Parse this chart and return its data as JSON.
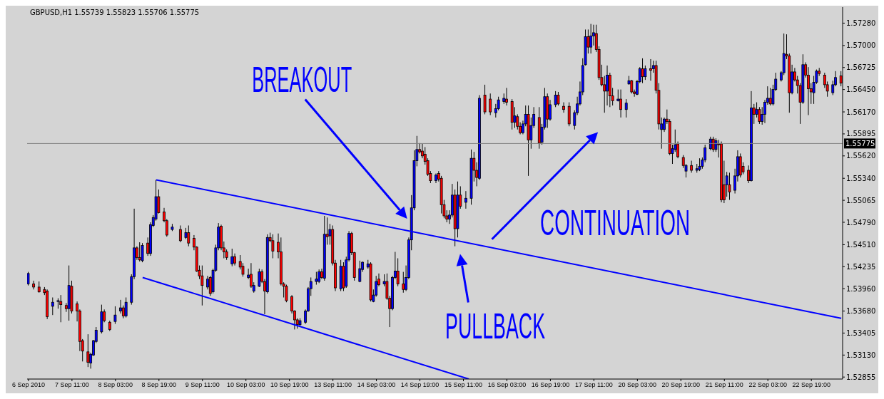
{
  "chart_data": {
    "type": "candlestick",
    "title": "GBPUSD,H1 1.55739 1.55823 1.55706 1.55775",
    "categories": [
      "6 Sep 2010",
      null,
      null,
      null,
      null,
      null,
      null,
      null,
      null,
      null,
      null,
      null,
      null,
      null,
      null,
      null,
      "7 Sep 11:00",
      null,
      null,
      null,
      null,
      null,
      null,
      null,
      null,
      null,
      null,
      null,
      null,
      null,
      null,
      null,
      "8 Sep 03:00",
      null,
      null,
      null,
      null,
      null,
      null,
      null,
      null,
      null,
      null,
      null,
      null,
      null,
      null,
      null,
      "8 Sep 19:00",
      null,
      null,
      null,
      null,
      null,
      null,
      null,
      null,
      null,
      null,
      null,
      null,
      null,
      null,
      null,
      "9 Sep 11:00",
      null,
      null,
      null,
      null,
      null,
      null,
      null,
      null,
      null,
      null,
      null,
      null,
      null,
      null,
      null,
      "10 Sep 03:00",
      null,
      null,
      null,
      null,
      null,
      null,
      null,
      null,
      null,
      null,
      null,
      null,
      null,
      null,
      null,
      "10 Sep 19:00",
      null,
      null,
      null,
      null,
      null,
      null,
      null,
      null,
      null,
      null,
      null,
      null,
      null,
      null,
      null,
      "13 Sep 11:00",
      null,
      null,
      null,
      null,
      null,
      null,
      null,
      null,
      null,
      null,
      null,
      null,
      null,
      null,
      null,
      "14 Sep 03:00",
      null,
      null,
      null,
      null,
      null,
      null,
      null,
      null,
      null,
      null,
      null,
      null,
      null,
      null,
      null,
      "14 Sep 19:00",
      null,
      null,
      null,
      null,
      null,
      null,
      null,
      null,
      null,
      null,
      null,
      null,
      null,
      null,
      null,
      "15 Sep 11:00",
      null,
      null,
      null,
      null,
      null,
      null,
      null,
      null,
      null,
      null,
      null,
      null,
      null,
      null,
      null,
      "16 Sep 03:00",
      null,
      null,
      null,
      null,
      null,
      null,
      null,
      null,
      null,
      null,
      null,
      null,
      null,
      null,
      null,
      "16 Sep 19:00",
      null,
      null,
      null,
      null,
      null,
      null,
      null,
      null,
      null,
      null,
      null,
      null,
      null,
      null,
      null,
      "17 Sep 11:00",
      null,
      null,
      null,
      null,
      null,
      null,
      null,
      null,
      null,
      null,
      null,
      null,
      null,
      null,
      null,
      "20 Sep 03:00",
      null,
      null,
      null,
      null,
      null,
      null,
      null,
      null,
      null,
      null,
      null,
      null,
      null,
      null,
      null,
      "20 Sep 19:00",
      null,
      null,
      null,
      null,
      null,
      null,
      null,
      null,
      null,
      null,
      null,
      null,
      null,
      null,
      null,
      "21 Sep 11:00",
      null,
      null,
      null,
      null,
      null,
      null,
      null,
      null,
      null,
      null,
      null,
      null,
      null,
      null,
      null,
      "22 Sep 03:00",
      null,
      null,
      null,
      null,
      null,
      null,
      null,
      null,
      null,
      null,
      null,
      null,
      null,
      null,
      null,
      "22 Sep 19:00",
      null,
      null,
      null,
      null,
      null,
      null,
      null,
      null,
      null,
      null,
      null
    ],
    "ohlc": [
      [
        1.5402,
        1.5417,
        1.54,
        1.5415
      ],
      null,
      [
        1.5402,
        1.5406,
        1.5395,
        1.5398
      ],
      null,
      [
        1.5398,
        1.5405,
        1.5391,
        1.5392
      ],
      null,
      [
        1.5395,
        1.5398,
        1.5388,
        1.5391
      ],
      [
        1.5393,
        1.5395,
        1.5358,
        1.5361
      ],
      null,
      [
        1.5374,
        1.5385,
        1.5363,
        1.5379
      ],
      null,
      [
        1.538,
        1.5384,
        1.5371,
        1.5381
      ],
      [
        1.538,
        1.5388,
        1.5354,
        1.5376
      ],
      null,
      [
        1.5375,
        1.5378,
        1.5367,
        1.5371
      ],
      [
        1.5371,
        1.5425,
        1.5356,
        1.54
      ],
      [
        1.5399,
        1.5406,
        1.5365,
        1.5368
      ],
      null,
      [
        1.5377,
        1.538,
        1.5355,
        1.5368
      ],
      [
        1.5368,
        1.537,
        1.5318,
        1.533
      ],
      [
        1.5331,
        1.5333,
        1.5305,
        1.5318
      ],
      null,
      [
        1.5317,
        1.5339,
        1.5298,
        1.5304
      ],
      [
        1.5303,
        1.5316,
        1.5296,
        1.5314
      ],
      [
        1.5313,
        1.5332,
        1.5312,
        1.5331
      ],
      [
        1.533,
        1.5348,
        1.5328,
        1.5344
      ],
      null,
      [
        1.5342,
        1.5376,
        1.534,
        1.5367
      ],
      [
        1.5367,
        1.537,
        1.5354,
        1.5356
      ],
      null,
      [
        1.5354,
        1.5356,
        1.5343,
        1.5345
      ],
      null,
      [
        1.5355,
        1.5374,
        1.5352,
        1.5363
      ],
      null,
      [
        1.5368,
        1.5382,
        1.5365,
        1.5372
      ],
      [
        1.5372,
        1.5375,
        1.5359,
        1.5362
      ],
      [
        1.5362,
        1.5385,
        1.536,
        1.5379
      ],
      null,
      [
        1.5379,
        1.5414,
        1.5376,
        1.5411
      ],
      [
        1.5411,
        1.5496,
        1.5408,
        1.5447
      ],
      [
        1.5447,
        1.5449,
        1.5432,
        1.5435
      ],
      [
        1.5435,
        1.5454,
        1.543,
        1.5432
      ],
      [
        1.5431,
        1.5453,
        1.5429,
        1.545
      ],
      null,
      [
        1.5453,
        1.546,
        1.5437,
        1.544
      ],
      [
        1.544,
        1.5479,
        1.5437,
        1.5476
      ],
      [
        1.5475,
        1.5488,
        1.5473,
        1.5485
      ],
      [
        1.5483,
        1.5532,
        1.5481,
        1.5511
      ],
      [
        1.5511,
        1.552,
        1.549,
        1.5491
      ],
      null,
      [
        1.5492,
        1.5497,
        1.5479,
        1.5481
      ],
      [
        1.5481,
        1.5483,
        1.5461,
        1.5463
      ],
      null,
      [
        1.547,
        1.5477,
        1.5468,
        1.5473
      ],
      null,
      null,
      [
        1.547,
        1.5475,
        1.5454,
        1.5456
      ],
      null,
      [
        1.546,
        1.5472,
        1.5458,
        1.5466
      ],
      [
        1.5466,
        1.5475,
        1.5449,
        1.5453
      ],
      null,
      [
        1.5459,
        1.5463,
        1.5444,
        1.5448
      ],
      [
        1.5448,
        1.5449,
        1.5417,
        1.5418
      ],
      [
        1.5419,
        1.5425,
        1.5408,
        1.5412
      ],
      [
        1.5412,
        1.5425,
        1.5375,
        1.54
      ],
      null,
      [
        1.5398,
        1.5412,
        1.5395,
        1.5408
      ],
      [
        1.541,
        1.5412,
        1.5387,
        1.539
      ],
      [
        1.5392,
        1.5421,
        1.539,
        1.5419
      ],
      [
        1.5419,
        1.5451,
        1.5417,
        1.5447
      ],
      [
        1.5447,
        1.5478,
        1.5444,
        1.5473
      ],
      [
        1.5474,
        1.5476,
        1.5444,
        1.5447
      ],
      [
        1.5447,
        1.5455,
        1.5434,
        1.5442
      ],
      [
        1.5442,
        1.5445,
        1.5432,
        1.5435
      ],
      null,
      [
        1.5427,
        1.5446,
        1.5424,
        1.5436
      ],
      [
        1.5436,
        1.544,
        1.5425,
        1.5428
      ],
      null,
      [
        1.543,
        1.5438,
        1.542,
        1.5423
      ],
      [
        1.5424,
        1.5428,
        1.5411,
        1.5414
      ],
      null,
      [
        1.541,
        1.5421,
        1.5408,
        1.5413
      ],
      [
        1.5414,
        1.5428,
        1.5397,
        1.5399
      ],
      [
        1.5393,
        1.5404,
        1.5391,
        1.54
      ],
      null,
      [
        1.5399,
        1.5421,
        1.5398,
        1.5417
      ],
      [
        1.5417,
        1.542,
        1.5403,
        1.5405
      ],
      [
        1.5405,
        1.5408,
        1.5364,
        1.5393
      ],
      [
        1.5392,
        1.5464,
        1.539,
        1.546
      ],
      [
        1.546,
        1.5466,
        1.5454,
        1.5456
      ],
      [
        1.5456,
        1.5464,
        1.5434,
        1.5443
      ],
      null,
      [
        1.5454,
        1.5465,
        1.5434,
        1.5442
      ],
      [
        1.5442,
        1.546,
        1.54,
        1.5402
      ],
      [
        1.5402,
        1.5404,
        1.5385,
        1.5399
      ],
      [
        1.5399,
        1.5401,
        1.5379,
        1.5381
      ],
      null,
      [
        1.5386,
        1.5388,
        1.5365,
        1.5368
      ],
      [
        1.5368,
        1.5369,
        1.5345,
        1.5357
      ],
      [
        1.5357,
        1.5359,
        1.5346,
        1.5351
      ],
      [
        1.5351,
        1.5359,
        1.5349,
        1.5356
      ],
      null,
      [
        1.5354,
        1.537,
        1.5352,
        1.5368
      ],
      [
        1.5368,
        1.5398,
        1.5367,
        1.5396
      ],
      [
        1.5396,
        1.541,
        1.5387,
        1.5405
      ],
      null,
      [
        1.5405,
        1.5417,
        1.5401,
        1.5408
      ],
      [
        1.5405,
        1.542,
        1.5403,
        1.5417
      ],
      [
        1.5417,
        1.5421,
        1.5408,
        1.541
      ],
      [
        1.5409,
        1.5487,
        1.5406,
        1.5464
      ],
      [
        1.5464,
        1.5485,
        1.5451,
        1.5461
      ],
      [
        1.5462,
        1.5477,
        1.5451,
        1.547
      ],
      [
        1.547,
        1.5475,
        1.5425,
        1.5428
      ],
      [
        1.5428,
        1.5432,
        1.5393,
        1.5397
      ],
      null,
      [
        1.5396,
        1.5432,
        1.5393,
        1.5424
      ],
      [
        1.5424,
        1.5429,
        1.5393,
        1.5397
      ],
      [
        1.5399,
        1.5436,
        1.5397,
        1.5432
      ],
      [
        1.5432,
        1.5468,
        1.543,
        1.5465
      ],
      [
        1.5465,
        1.5467,
        1.5438,
        1.5441
      ],
      [
        1.5441,
        1.5442,
        1.5406,
        1.541
      ],
      null,
      [
        1.5405,
        1.5431,
        1.5404,
        1.5421
      ],
      [
        1.542,
        1.543,
        1.5417,
        1.5429
      ],
      null,
      [
        1.5423,
        1.5432,
        1.5421,
        1.5427
      ],
      [
        1.5427,
        1.5429,
        1.538,
        1.5382
      ],
      [
        1.538,
        1.5395,
        1.5379,
        1.5388
      ],
      [
        1.5388,
        1.5412,
        1.5386,
        1.5405
      ],
      [
        1.5408,
        1.5415,
        1.5399,
        1.5401
      ],
      null,
      [
        1.5402,
        1.5414,
        1.5399,
        1.5405
      ],
      [
        1.5405,
        1.5415,
        1.5382,
        1.5384
      ],
      [
        1.5384,
        1.5387,
        1.5348,
        1.5371
      ],
      [
        1.5371,
        1.5412,
        1.5369,
        1.541
      ],
      [
        1.541,
        1.5442,
        1.5408,
        1.5418
      ],
      [
        1.5418,
        1.5434,
        1.5399,
        1.5402
      ],
      null,
      [
        1.5402,
        1.5417,
        1.5391,
        1.5395
      ],
      [
        1.5395,
        1.5425,
        1.5393,
        1.541
      ],
      [
        1.541,
        1.546,
        1.5408,
        1.5457
      ],
      [
        1.5457,
        1.5513,
        1.5444,
        1.5497
      ],
      [
        1.5497,
        1.5569,
        1.5494,
        1.5556
      ],
      [
        1.5556,
        1.5587,
        1.5549,
        1.557
      ],
      [
        1.557,
        1.5578,
        1.5565,
        1.5567
      ],
      [
        1.5568,
        1.5577,
        1.5559,
        1.5562
      ],
      [
        1.5564,
        1.5573,
        1.5551,
        1.5555
      ],
      [
        1.5556,
        1.5559,
        1.5537,
        1.5539
      ],
      [
        1.554,
        1.5543,
        1.5528,
        1.5531
      ],
      null,
      [
        1.5531,
        1.554,
        1.5528,
        1.5538
      ],
      [
        1.554,
        1.5543,
        1.553,
        1.5533
      ],
      [
        1.5534,
        1.5537,
        1.549,
        1.5501
      ],
      [
        1.5501,
        1.5507,
        1.5484,
        1.5487
      ],
      [
        1.5487,
        1.5494,
        1.5479,
        1.5483
      ],
      [
        1.5483,
        1.5494,
        1.5477,
        1.5488
      ],
      [
        1.5488,
        1.5527,
        1.5485,
        1.5513
      ],
      [
        1.5513,
        1.552,
        1.5449,
        1.5471
      ],
      [
        1.5471,
        1.553,
        1.546,
        1.5513
      ],
      [
        1.5513,
        1.5524,
        1.5496,
        1.5499
      ],
      null,
      [
        1.5504,
        1.5518,
        1.5496,
        1.5509
      ],
      null,
      [
        1.5509,
        1.557,
        1.5501,
        1.5559
      ],
      [
        1.5559,
        1.5567,
        1.553,
        1.5544
      ],
      [
        1.5544,
        1.5554,
        1.5524,
        1.5535
      ],
      [
        1.5534,
        1.5638,
        1.5532,
        1.5634
      ],
      null,
      [
        1.5638,
        1.5651,
        1.5614,
        1.5617
      ],
      null,
      [
        1.5633,
        1.564,
        1.5613,
        1.5617
      ],
      null,
      [
        1.5616,
        1.5627,
        1.561,
        1.5621
      ],
      [
        1.5621,
        1.5636,
        1.5619,
        1.5632
      ],
      null,
      [
        1.563,
        1.564,
        1.5627,
        1.5634
      ],
      [
        1.5633,
        1.5647,
        1.5625,
        1.5629
      ],
      null,
      [
        1.563,
        1.5633,
        1.5595,
        1.5604
      ],
      [
        1.5604,
        1.5623,
        1.5597,
        1.5612
      ],
      [
        1.5611,
        1.5614,
        1.5595,
        1.5599
      ],
      [
        1.5599,
        1.5604,
        1.5589,
        1.5591
      ],
      [
        1.5591,
        1.5606,
        1.5589,
        1.5602
      ],
      [
        1.5602,
        1.5625,
        1.5599,
        1.5614
      ],
      [
        1.5614,
        1.5625,
        1.5537,
        1.5582
      ],
      [
        1.5582,
        1.561,
        1.5571,
        1.56
      ],
      [
        1.56,
        1.5623,
        1.5597,
        1.5614
      ],
      null,
      [
        1.561,
        1.5623,
        1.5571,
        1.5578
      ],
      [
        1.5579,
        1.5602,
        1.5576,
        1.5598
      ],
      [
        1.5598,
        1.5647,
        1.5595,
        1.5636
      ],
      [
        1.5636,
        1.564,
        1.5597,
        1.5608
      ],
      [
        1.5608,
        1.5632,
        1.5606,
        1.5626
      ],
      null,
      [
        1.5626,
        1.5643,
        1.5623,
        1.5638
      ],
      [
        1.5638,
        1.5642,
        1.5625,
        1.5627
      ],
      null,
      [
        1.5624,
        1.5629,
        1.5616,
        1.562
      ],
      null,
      [
        1.5624,
        1.5629,
        1.5599,
        1.5602
      ],
      null,
      [
        1.56,
        1.5619,
        1.5595,
        1.5616
      ],
      [
        1.5616,
        1.5636,
        1.5613,
        1.5627
      ],
      [
        1.5627,
        1.5655,
        1.5625,
        1.5642
      ],
      [
        1.5642,
        1.5684,
        1.5638,
        1.5675
      ],
      [
        1.5676,
        1.572,
        1.5675,
        1.5711
      ],
      [
        1.5711,
        1.572,
        1.569,
        1.5698
      ],
      [
        1.5698,
        1.5727,
        1.569,
        1.5712
      ],
      [
        1.5712,
        1.5726,
        1.57,
        1.5716
      ],
      [
        1.5715,
        1.5726,
        1.5692,
        1.5695
      ],
      [
        1.5695,
        1.5699,
        1.5657,
        1.566
      ],
      [
        1.566,
        1.5676,
        1.5649,
        1.5651
      ],
      [
        1.5651,
        1.5662,
        1.5616,
        1.5643
      ],
      [
        1.5643,
        1.5675,
        1.5625,
        1.5663
      ],
      [
        1.5663,
        1.5666,
        1.5623,
        1.5637
      ],
      [
        1.5637,
        1.5647,
        1.5625,
        1.5631
      ],
      null,
      [
        1.5631,
        1.5645,
        1.563,
        1.5633
      ],
      [
        1.5633,
        1.5645,
        1.561,
        1.562
      ],
      null,
      [
        1.562,
        1.5633,
        1.561,
        1.5628
      ],
      [
        1.5652,
        1.5662,
        1.5651,
        1.5656
      ],
      [
        1.5656,
        1.5657,
        1.564,
        1.5642
      ],
      [
        1.5642,
        1.5645,
        1.5636,
        1.564
      ],
      [
        1.5639,
        1.5657,
        1.5638,
        1.5655
      ],
      [
        1.5655,
        1.5673,
        1.5653,
        1.5671
      ],
      [
        1.5671,
        1.5684,
        1.5653,
        1.5661
      ],
      [
        1.5661,
        1.5675,
        1.5657,
        1.5671
      ],
      null,
      [
        1.5671,
        1.5683,
        1.5656,
        1.5669
      ],
      [
        1.5671,
        1.5681,
        1.5666,
        1.5675
      ],
      [
        1.5675,
        1.5681,
        1.564,
        1.5644
      ],
      [
        1.5644,
        1.5653,
        1.5595,
        1.5602
      ],
      [
        1.5595,
        1.561,
        1.5571,
        1.5602
      ],
      [
        1.5595,
        1.561,
        1.5592,
        1.5608
      ],
      [
        1.5608,
        1.562,
        1.5602,
        1.5605
      ],
      [
        1.5605,
        1.5608,
        1.5563,
        1.5565
      ],
      [
        1.5565,
        1.5576,
        1.5552,
        1.5571
      ],
      [
        1.557,
        1.5595,
        1.5567,
        1.5576
      ],
      [
        1.5577,
        1.558,
        1.5559,
        1.5561
      ],
      null,
      [
        1.556,
        1.5563,
        1.5547,
        1.555
      ],
      [
        1.5543,
        1.5552,
        1.5535,
        1.555
      ],
      null,
      [
        1.555,
        1.5556,
        1.5541,
        1.5544
      ],
      null,
      [
        1.5544,
        1.5552,
        1.5541,
        1.5546
      ],
      [
        1.5545,
        1.5559,
        1.5543,
        1.5549
      ],
      [
        1.5549,
        1.556,
        1.5546,
        1.5557
      ],
      [
        1.5557,
        1.5576,
        1.5554,
        1.5572
      ],
      null,
      [
        1.5571,
        1.5586,
        1.5569,
        1.5583
      ],
      [
        1.5583,
        1.5586,
        1.5567,
        1.557
      ],
      [
        1.557,
        1.5584,
        1.5567,
        1.5581
      ],
      [
        1.5577,
        1.5582,
        1.556,
        1.5576
      ],
      [
        1.5577,
        1.558,
        1.5504,
        1.5507
      ],
      [
        1.5526,
        1.5556,
        1.5503,
        1.5507
      ],
      [
        1.5526,
        1.5542,
        1.5511,
        1.5537
      ],
      [
        1.5526,
        1.5541,
        1.5507,
        1.5517
      ],
      null,
      [
        1.5519,
        1.5546,
        1.5515,
        1.5537
      ],
      [
        1.5537,
        1.5569,
        1.553,
        1.5561
      ],
      [
        1.5561,
        1.5565,
        1.5535,
        1.5538
      ],
      [
        1.5549,
        1.5554,
        1.5539,
        1.5542
      ],
      null,
      [
        1.5544,
        1.555,
        1.5528,
        1.5531
      ],
      [
        1.5531,
        1.5643,
        1.553,
        1.5622
      ],
      [
        1.5622,
        1.5627,
        1.5602,
        1.5614
      ],
      [
        1.5614,
        1.5629,
        1.561,
        1.562
      ],
      [
        1.562,
        1.5623,
        1.5602,
        1.5605
      ],
      [
        1.5605,
        1.5623,
        1.5601,
        1.5614
      ],
      [
        1.5614,
        1.5632,
        1.5603,
        1.5629
      ],
      [
        1.5629,
        1.5649,
        1.5626,
        1.5634
      ],
      [
        1.5634,
        1.5647,
        1.5625,
        1.5627
      ],
      [
        1.5627,
        1.5651,
        1.5625,
        1.5645
      ],
      [
        1.5645,
        1.5666,
        1.5643,
        1.5658
      ],
      null,
      [
        1.5657,
        1.5668,
        1.5655,
        1.5666
      ],
      [
        1.5666,
        1.5715,
        1.5663,
        1.569
      ],
      [
        1.5689,
        1.5714,
        1.5683,
        1.5687
      ],
      [
        1.5687,
        1.569,
        1.5616,
        1.5641
      ],
      [
        1.5641,
        1.5676,
        1.5639,
        1.5667
      ],
      [
        1.5667,
        1.5672,
        1.5655,
        1.5657
      ],
      [
        1.5657,
        1.5662,
        1.564,
        1.565
      ],
      [
        1.565,
        1.5653,
        1.5602,
        1.5629
      ],
      [
        1.5629,
        1.5689,
        1.5627,
        1.5676
      ],
      [
        1.5676,
        1.5679,
        1.566,
        1.5663
      ],
      [
        1.5663,
        1.5673,
        1.5613,
        1.5646
      ],
      [
        1.5646,
        1.5653,
        1.5627,
        1.5642
      ],
      [
        1.5641,
        1.5662,
        1.5627,
        1.5654
      ],
      [
        1.5654,
        1.567,
        1.5652,
        1.5668
      ],
      [
        1.5668,
        1.5672,
        1.5662,
        1.5665
      ],
      null,
      [
        1.5663,
        1.5666,
        1.5647,
        1.5651
      ],
      [
        1.5651,
        1.5655,
        1.5636,
        1.5643
      ],
      null,
      [
        1.5641,
        1.5656,
        1.5638,
        1.5651
      ],
      [
        1.5651,
        1.5668,
        1.5649,
        1.566
      ],
      null,
      [
        1.5662,
        1.5668,
        1.5649,
        1.5653
      ]
    ],
    "ylim": [
      1.5283,
      1.5748
    ],
    "yticks": [
      {
        "value": 1.5728,
        "label": "1.57280"
      },
      {
        "value": 1.57,
        "label": "1.57000"
      },
      {
        "value": 1.56725,
        "label": "1.56725"
      },
      {
        "value": 1.5645,
        "label": "1.56450"
      },
      {
        "value": 1.5617,
        "label": "1.56170"
      },
      {
        "value": 1.55895,
        "label": "1.55895"
      },
      {
        "value": 1.5562,
        "label": "1.55620"
      },
      {
        "value": 1.5534,
        "label": "1.55340"
      },
      {
        "value": 1.55065,
        "label": "1.55065"
      },
      {
        "value": 1.5479,
        "label": "1.54790"
      },
      {
        "value": 1.5451,
        "label": "1.54510"
      },
      {
        "value": 1.54235,
        "label": "1.54235"
      },
      {
        "value": 1.5396,
        "label": "1.53960"
      },
      {
        "value": 1.5368,
        "label": "1.53680"
      },
      {
        "value": 1.53405,
        "label": "1.53405"
      },
      {
        "value": 1.5313,
        "label": "1.53130"
      },
      {
        "value": 1.52855,
        "label": "1.52855"
      }
    ],
    "series": [
      {
        "type": "line",
        "color": "#0000ff",
        "values": [
          null,
          null,
          null,
          null,
          null,
          null,
          null,
          null,
          null,
          null,
          null,
          null,
          null,
          null,
          null,
          null,
          null,
          null,
          null,
          null,
          null,
          null,
          null,
          null,
          null,
          null,
          null,
          null,
          null,
          null,
          null,
          null,
          null,
          null,
          null,
          null,
          null,
          null,
          null,
          null,
          null,
          null,
          null,
          null,
          null,
          null,
          null,
          1.5532,
          null,
          null,
          null,
          null,
          null,
          null,
          null,
          null,
          null,
          null,
          null,
          null,
          null,
          null,
          null,
          null,
          null,
          null,
          null,
          null,
          null,
          null,
          null,
          null,
          null,
          null,
          null,
          null,
          null,
          null,
          null,
          null,
          null,
          null,
          null,
          null,
          null,
          null,
          null,
          null,
          null,
          null,
          null,
          null,
          null,
          null,
          null,
          null,
          null,
          null,
          null,
          null,
          null,
          null,
          null,
          null,
          null,
          null,
          null,
          null,
          null,
          null,
          null,
          null,
          null,
          null,
          null,
          null,
          null,
          null,
          null,
          null,
          null,
          null,
          null,
          null,
          null,
          null,
          null,
          null,
          null,
          null,
          null,
          null,
          null,
          null,
          null,
          null,
          null,
          null,
          null,
          null,
          null,
          null,
          null,
          null,
          null,
          null,
          null,
          null,
          null,
          null,
          null,
          null,
          null,
          null,
          null,
          null,
          null,
          null,
          null,
          null,
          null,
          null,
          null,
          null,
          null,
          null,
          null,
          null,
          null,
          null,
          null,
          null,
          null,
          null,
          null,
          null,
          null,
          null,
          null,
          null,
          null,
          null,
          null,
          null,
          null,
          null,
          null,
          null,
          null,
          null,
          null,
          null,
          null,
          null,
          null,
          null,
          null,
          null,
          null,
          null,
          null,
          null,
          null,
          null,
          null,
          null,
          null,
          null,
          null,
          null,
          null,
          null,
          null,
          null,
          null,
          null,
          null,
          null,
          null,
          null,
          null,
          null,
          null,
          null,
          null,
          null,
          null,
          null,
          null,
          null,
          null,
          null,
          null,
          null,
          null,
          null,
          null,
          null,
          null,
          null,
          null,
          null,
          null,
          null,
          null,
          null,
          null,
          null,
          null,
          null,
          null,
          null,
          null,
          null,
          null,
          null,
          null,
          null,
          null,
          null,
          null,
          null,
          null,
          null,
          null,
          null,
          null,
          null,
          null,
          null,
          null,
          null,
          null,
          null,
          null,
          null,
          null,
          null,
          null,
          null,
          null,
          null,
          null,
          null,
          null,
          null,
          null,
          null,
          null,
          null,
          null,
          null,
          null,
          null,
          null,
          null,
          null,
          null,
          null,
          1.5359
        ]
      },
      {
        "type": "line",
        "color": "#0000ff",
        "values": [
          null,
          null,
          null,
          null,
          null,
          null,
          null,
          null,
          null,
          null,
          null,
          null,
          null,
          null,
          null,
          null,
          null,
          null,
          null,
          null,
          null,
          null,
          null,
          null,
          null,
          null,
          null,
          null,
          null,
          null,
          null,
          null,
          null,
          null,
          null,
          null,
          null,
          null,
          null,
          null,
          null,
          null,
          1.541,
          null,
          null,
          null,
          null,
          null,
          null,
          null,
          null,
          null,
          null,
          null,
          null,
          null,
          null,
          null,
          null,
          null,
          null,
          null,
          null,
          null,
          null,
          null,
          null,
          null,
          null,
          null,
          null,
          null,
          null,
          null,
          null,
          null,
          null,
          null,
          null,
          null,
          null,
          null,
          null,
          null,
          null,
          null,
          null,
          null,
          null,
          null,
          null,
          null,
          null,
          null,
          null,
          null,
          null,
          null,
          null,
          null,
          null,
          null,
          null,
          null,
          null,
          null,
          null,
          null,
          null,
          null,
          null,
          null,
          null,
          null,
          null,
          null,
          null,
          null,
          null,
          null,
          null,
          null,
          null,
          null,
          null,
          null,
          null,
          null,
          null,
          null,
          null,
          null,
          null,
          null,
          null,
          null,
          null,
          null,
          null,
          null,
          null,
          null,
          null,
          null,
          null,
          null,
          null,
          null,
          null,
          null,
          null,
          null,
          null,
          null,
          null,
          null,
          null,
          null,
          null,
          null,
          null,
          null,
          1.5283,
          null,
          null,
          null,
          null,
          null,
          null,
          null,
          null,
          null,
          null,
          null,
          null,
          null,
          null,
          null,
          null,
          null,
          null,
          null,
          null,
          null,
          null,
          null,
          null,
          null,
          null,
          null,
          null,
          null,
          null,
          null,
          null,
          null,
          null,
          null,
          null,
          null,
          null,
          null,
          null,
          null,
          null,
          null,
          null,
          null,
          null,
          null,
          null,
          null,
          null,
          null,
          null,
          null,
          null,
          null,
          null,
          null,
          null,
          null,
          null,
          null,
          null,
          null,
          null,
          null,
          null,
          null,
          null,
          null,
          null,
          null,
          null,
          null,
          null,
          null,
          null,
          null,
          null,
          null,
          null,
          null,
          null,
          null,
          null,
          null,
          null,
          null,
          null,
          null,
          null,
          null,
          null,
          null,
          null,
          null,
          null,
          null,
          null,
          null,
          null,
          null,
          null,
          null,
          null,
          null,
          null,
          null,
          null,
          null,
          null,
          null,
          null,
          null,
          null,
          null,
          null,
          null,
          null,
          null,
          null,
          null,
          null,
          null,
          null,
          null,
          null,
          null,
          null,
          null,
          null,
          null,
          null,
          null,
          null,
          null,
          null,
          null
        ]
      }
    ],
    "ref_lines": [
      {
        "axis": "y",
        "value": 1.55775,
        "label": "1.55775",
        "color": "#808080"
      }
    ],
    "annotations": [
      "BREAKOUT",
      "PULLBACK",
      "CONTINUATION"
    ]
  }
}
